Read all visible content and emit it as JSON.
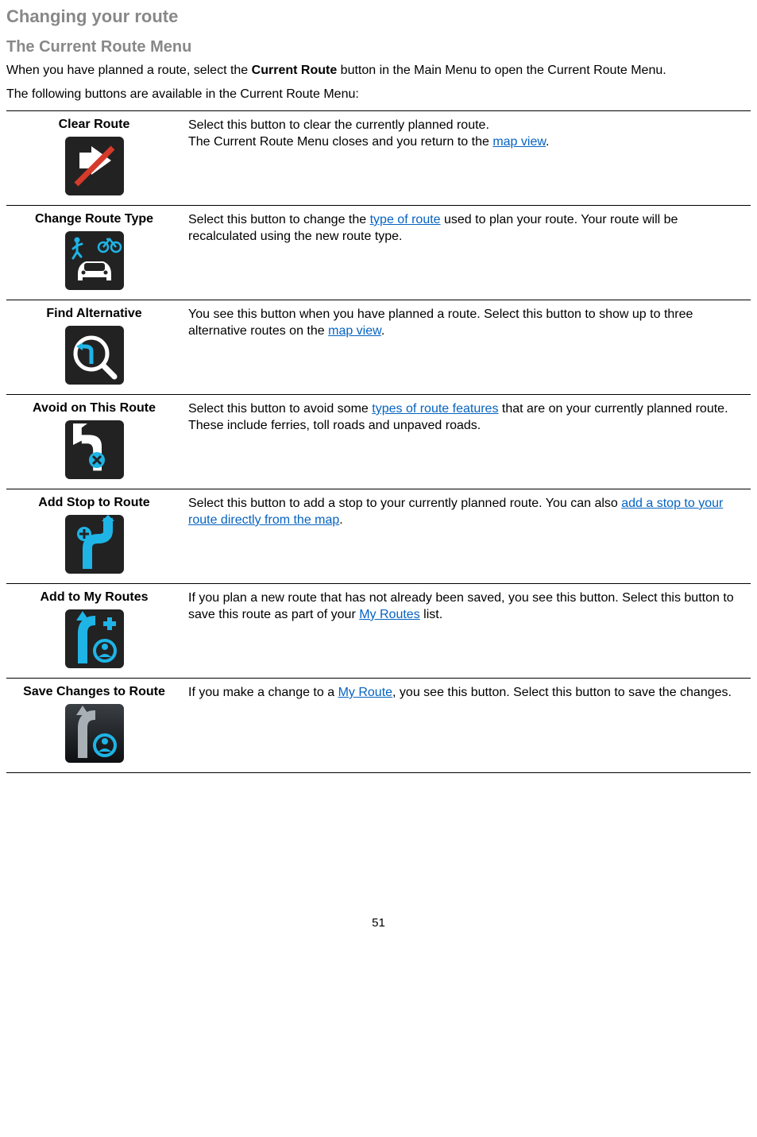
{
  "colors": {
    "heading_gray": "#888888",
    "link_blue": "#0563c1",
    "icon_bg_dark": "#222222",
    "icon_accent_cyan": "#1fb4e6",
    "icon_accent_red": "#d53a2a",
    "icon_white": "#ffffff"
  },
  "page": {
    "title": "Changing your route",
    "subtitle": "The Current Route Menu",
    "intro_pre": "When you have planned a route, select the ",
    "intro_bold": "Current Route",
    "intro_post": " button in the Main Menu to open the Current Route Menu.",
    "lead": "The following buttons are available in the Current Route Menu:",
    "page_number": "51"
  },
  "rows": [
    {
      "label": "Clear Route",
      "desc_parts": [
        {
          "t": "Select this button to clear the currently planned route."
        },
        {
          "br": true
        },
        {
          "t": "The Current Route Menu closes and you return to the "
        },
        {
          "link": "map view"
        },
        {
          "t": "."
        }
      ]
    },
    {
      "label": "Change Route Type",
      "desc_parts": [
        {
          "t": "Select this button to change the "
        },
        {
          "link": "type of route"
        },
        {
          "t": " used to plan your route. Your route will be recalculated using the new route type."
        }
      ]
    },
    {
      "label": "Find Alternative",
      "desc_parts": [
        {
          "t": "You see this button when you have planned a route. Select this button to show up to three alternative routes on the "
        },
        {
          "link": "map view"
        },
        {
          "t": "."
        }
      ]
    },
    {
      "label": "Avoid on This Route",
      "desc_parts": [
        {
          "t": "Select this button to avoid some "
        },
        {
          "link": "types of route features"
        },
        {
          "t": " that are on your currently planned route. These include ferries, toll roads and unpaved roads."
        }
      ]
    },
    {
      "label": "Add Stop to Route",
      "desc_parts": [
        {
          "t": "Select this button to add a stop to your currently planned route. You can also "
        },
        {
          "link": "add a stop to your route directly from the map"
        },
        {
          "t": "."
        }
      ]
    },
    {
      "label": "Add to My Routes",
      "desc_parts": [
        {
          "t": "If you plan a new route that has not already been saved, you see this button. Select this button to save this route as part of your "
        },
        {
          "link": "My Routes"
        },
        {
          "t": " list."
        }
      ]
    },
    {
      "label": "Save Changes to Route",
      "desc_parts": [
        {
          "t": "If you make a change to a "
        },
        {
          "link": "My Route"
        },
        {
          "t": ", you see this button. Select this button to save the changes."
        }
      ]
    }
  ]
}
